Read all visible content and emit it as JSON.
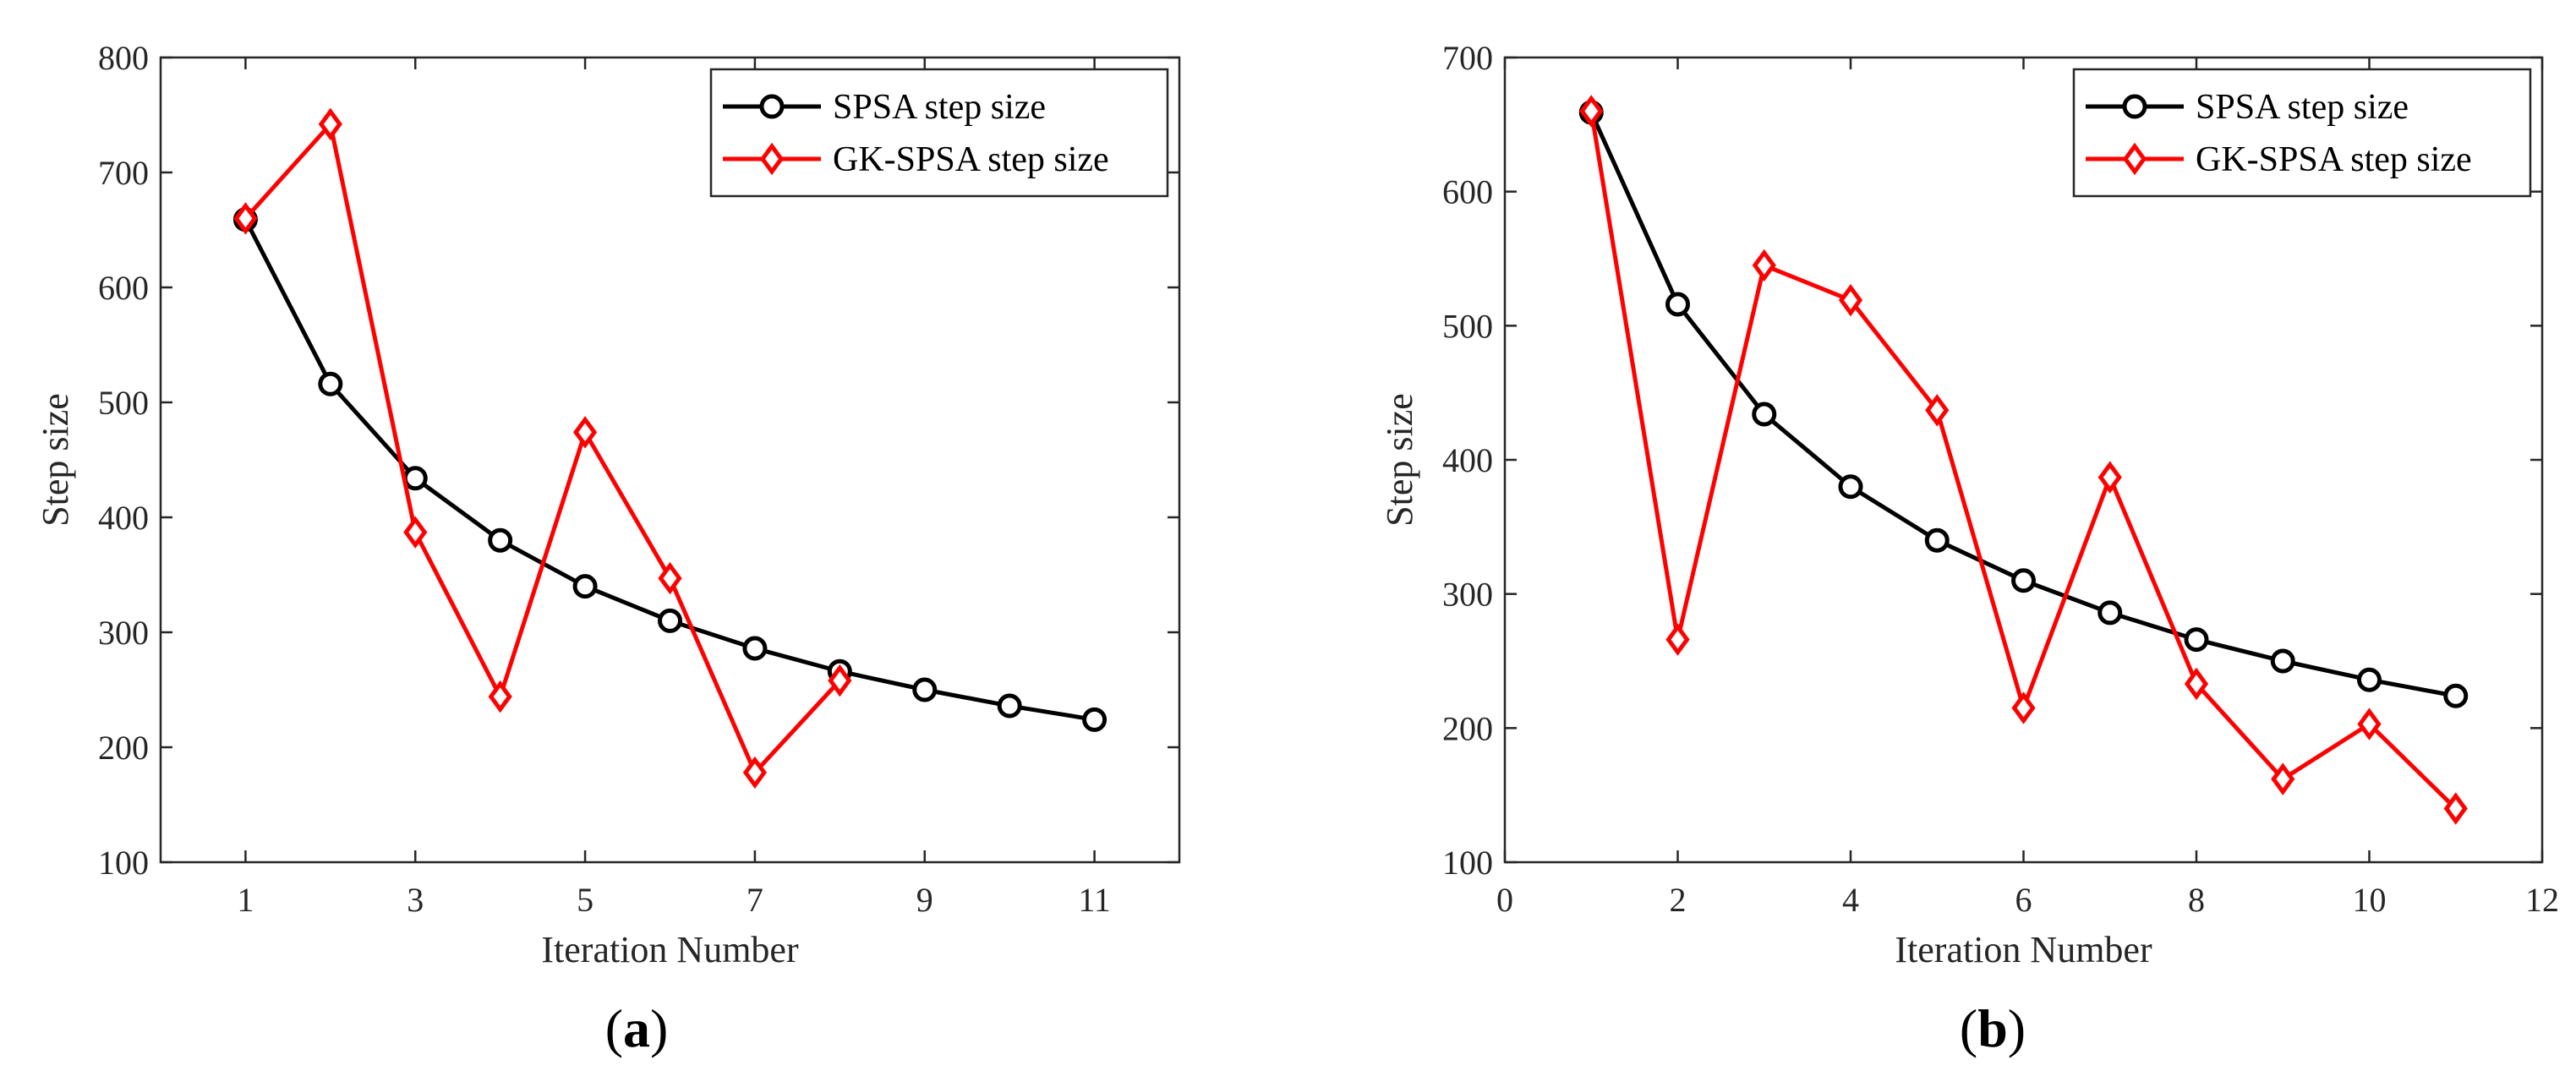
{
  "colors": {
    "spsa": "#000000",
    "gk_spsa": "#ff0000",
    "axis": "#262626"
  },
  "chart_data": [
    {
      "type": "line",
      "panel_label": {
        "open": "(",
        "letter": "a",
        "close": ")"
      },
      "title": "",
      "xlabel": "Iteration Number",
      "ylabel": "Step size",
      "xlim": [
        0,
        12
      ],
      "ylim": [
        100,
        800
      ],
      "xticks": [
        1,
        3,
        5,
        7,
        9,
        11
      ],
      "yticks": [
        100,
        200,
        300,
        400,
        500,
        600,
        700,
        800
      ],
      "grid": false,
      "legend_position": "top-right",
      "series": [
        {
          "name": "SPSA step size",
          "marker": "circle",
          "color": "#000000",
          "x": [
            1,
            2,
            3,
            4,
            5,
            6,
            7,
            8,
            9,
            10,
            11
          ],
          "values": [
            659,
            516,
            434,
            380,
            340,
            310,
            286,
            266,
            250,
            236,
            224
          ]
        },
        {
          "name": "GK-SPSA step size",
          "marker": "diamond",
          "color": "#ff0000",
          "x": [
            1,
            2,
            3,
            4,
            5,
            6,
            7,
            8
          ],
          "values": [
            660,
            742,
            387,
            244,
            474,
            347,
            178,
            258
          ]
        }
      ]
    },
    {
      "type": "line",
      "panel_label": {
        "open": "(",
        "letter": "b",
        "close": ")"
      },
      "title": "",
      "xlabel": "Iteration Number",
      "ylabel": "Step size",
      "xlim": [
        0,
        12
      ],
      "ylim": [
        100,
        700
      ],
      "xticks": [
        0,
        2,
        4,
        6,
        8,
        10,
        12
      ],
      "yticks": [
        100,
        200,
        300,
        400,
        500,
        600,
        700
      ],
      "grid": false,
      "legend_position": "top-right",
      "series": [
        {
          "name": "SPSA step size",
          "marker": "circle",
          "color": "#000000",
          "x": [
            1,
            2,
            3,
            4,
            5,
            6,
            7,
            8,
            9,
            10,
            11
          ],
          "values": [
            659,
            516,
            434,
            380,
            340,
            310,
            286,
            266,
            250,
            236,
            224
          ]
        },
        {
          "name": "GK-SPSA step size",
          "marker": "diamond",
          "color": "#ff0000",
          "x": [
            1,
            2,
            3,
            4,
            5,
            6,
            7,
            8,
            9,
            10,
            11
          ],
          "values": [
            660,
            266,
            545,
            519,
            437,
            215,
            387,
            233,
            162,
            203,
            140
          ]
        }
      ]
    }
  ]
}
